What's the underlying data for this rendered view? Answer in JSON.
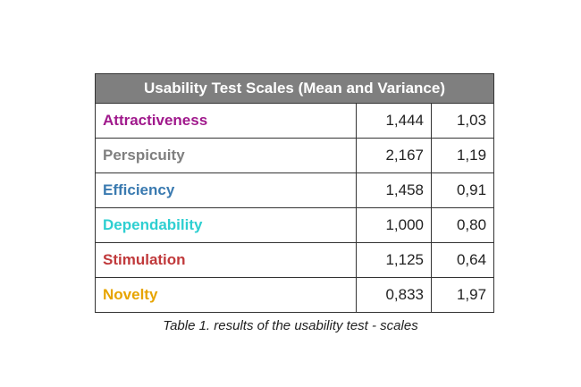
{
  "table": {
    "title": "Usability Test Scales (Mean and Variance)",
    "rows": [
      {
        "scale": "Attractiveness",
        "mean": "1,444",
        "variance": "1,03",
        "color": "#a0198c"
      },
      {
        "scale": "Perspicuity",
        "mean": "2,167",
        "variance": "1,19",
        "color": "#7f7f7f"
      },
      {
        "scale": "Efficiency",
        "mean": "1,458",
        "variance": "0,91",
        "color": "#3a7ab0"
      },
      {
        "scale": "Dependability",
        "mean": "1,000",
        "variance": "0,80",
        "color": "#2ecfd1"
      },
      {
        "scale": "Stimulation",
        "mean": "1,125",
        "variance": "0,64",
        "color": "#c0393b"
      },
      {
        "scale": "Novelty",
        "mean": "0,833",
        "variance": "1,97",
        "color": "#e7a400"
      }
    ]
  },
  "caption": "Table 1. results of the usability test - scales"
}
